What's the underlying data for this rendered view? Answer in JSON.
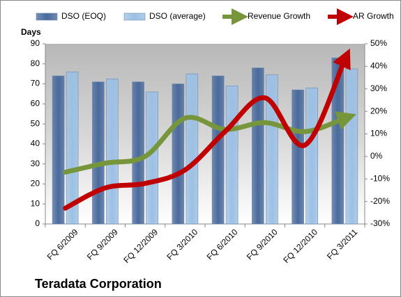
{
  "chart_data": {
    "type": "bar_line",
    "title": "Teradata Corporation",
    "y_label": "Days",
    "categories": [
      "FQ 6/2009",
      "FQ 9/2009",
      "FQ 12/2009",
      "FQ 3/2010",
      "FQ 6/2010",
      "FQ 9/2010",
      "FQ 12/2010",
      "FQ 3/2011"
    ],
    "series": [
      {
        "name": "DSO (EOQ)",
        "type": "bar",
        "color": "#4a6a9c",
        "values": [
          74,
          71,
          71,
          70,
          74,
          78,
          67,
          83
        ]
      },
      {
        "name": "DSO (average)",
        "type": "bar",
        "color": "#9cc0e4",
        "values": [
          76,
          72.5,
          66,
          75,
          69,
          74.5,
          68,
          77.5
        ]
      },
      {
        "name": "Revenue Growth",
        "type": "line",
        "axis": "y2",
        "color": "#77963c",
        "values": [
          -7,
          -3,
          0,
          17,
          12,
          15,
          11,
          17
        ]
      },
      {
        "name": "AR Growth",
        "type": "line",
        "axis": "y2",
        "color": "#c00000",
        "values": [
          -23,
          -14,
          -12,
          -6,
          11,
          26,
          5,
          43
        ]
      }
    ],
    "ylim": [
      0,
      90
    ],
    "yticks": [
      0,
      10,
      20,
      30,
      40,
      50,
      60,
      70,
      80,
      90
    ],
    "y2lim": [
      -30,
      50
    ],
    "y2ticks": [
      {
        "value": -30,
        "label": "-30%"
      },
      {
        "value": -20,
        "label": "-20%"
      },
      {
        "value": -10,
        "label": "-10%"
      },
      {
        "value": 0,
        "label": "0%"
      },
      {
        "value": 10,
        "label": "10%"
      },
      {
        "value": 20,
        "label": "20%"
      },
      {
        "value": 30,
        "label": "30%"
      },
      {
        "value": 40,
        "label": "40%"
      },
      {
        "value": 50,
        "label": "50%"
      }
    ],
    "grid": false
  }
}
